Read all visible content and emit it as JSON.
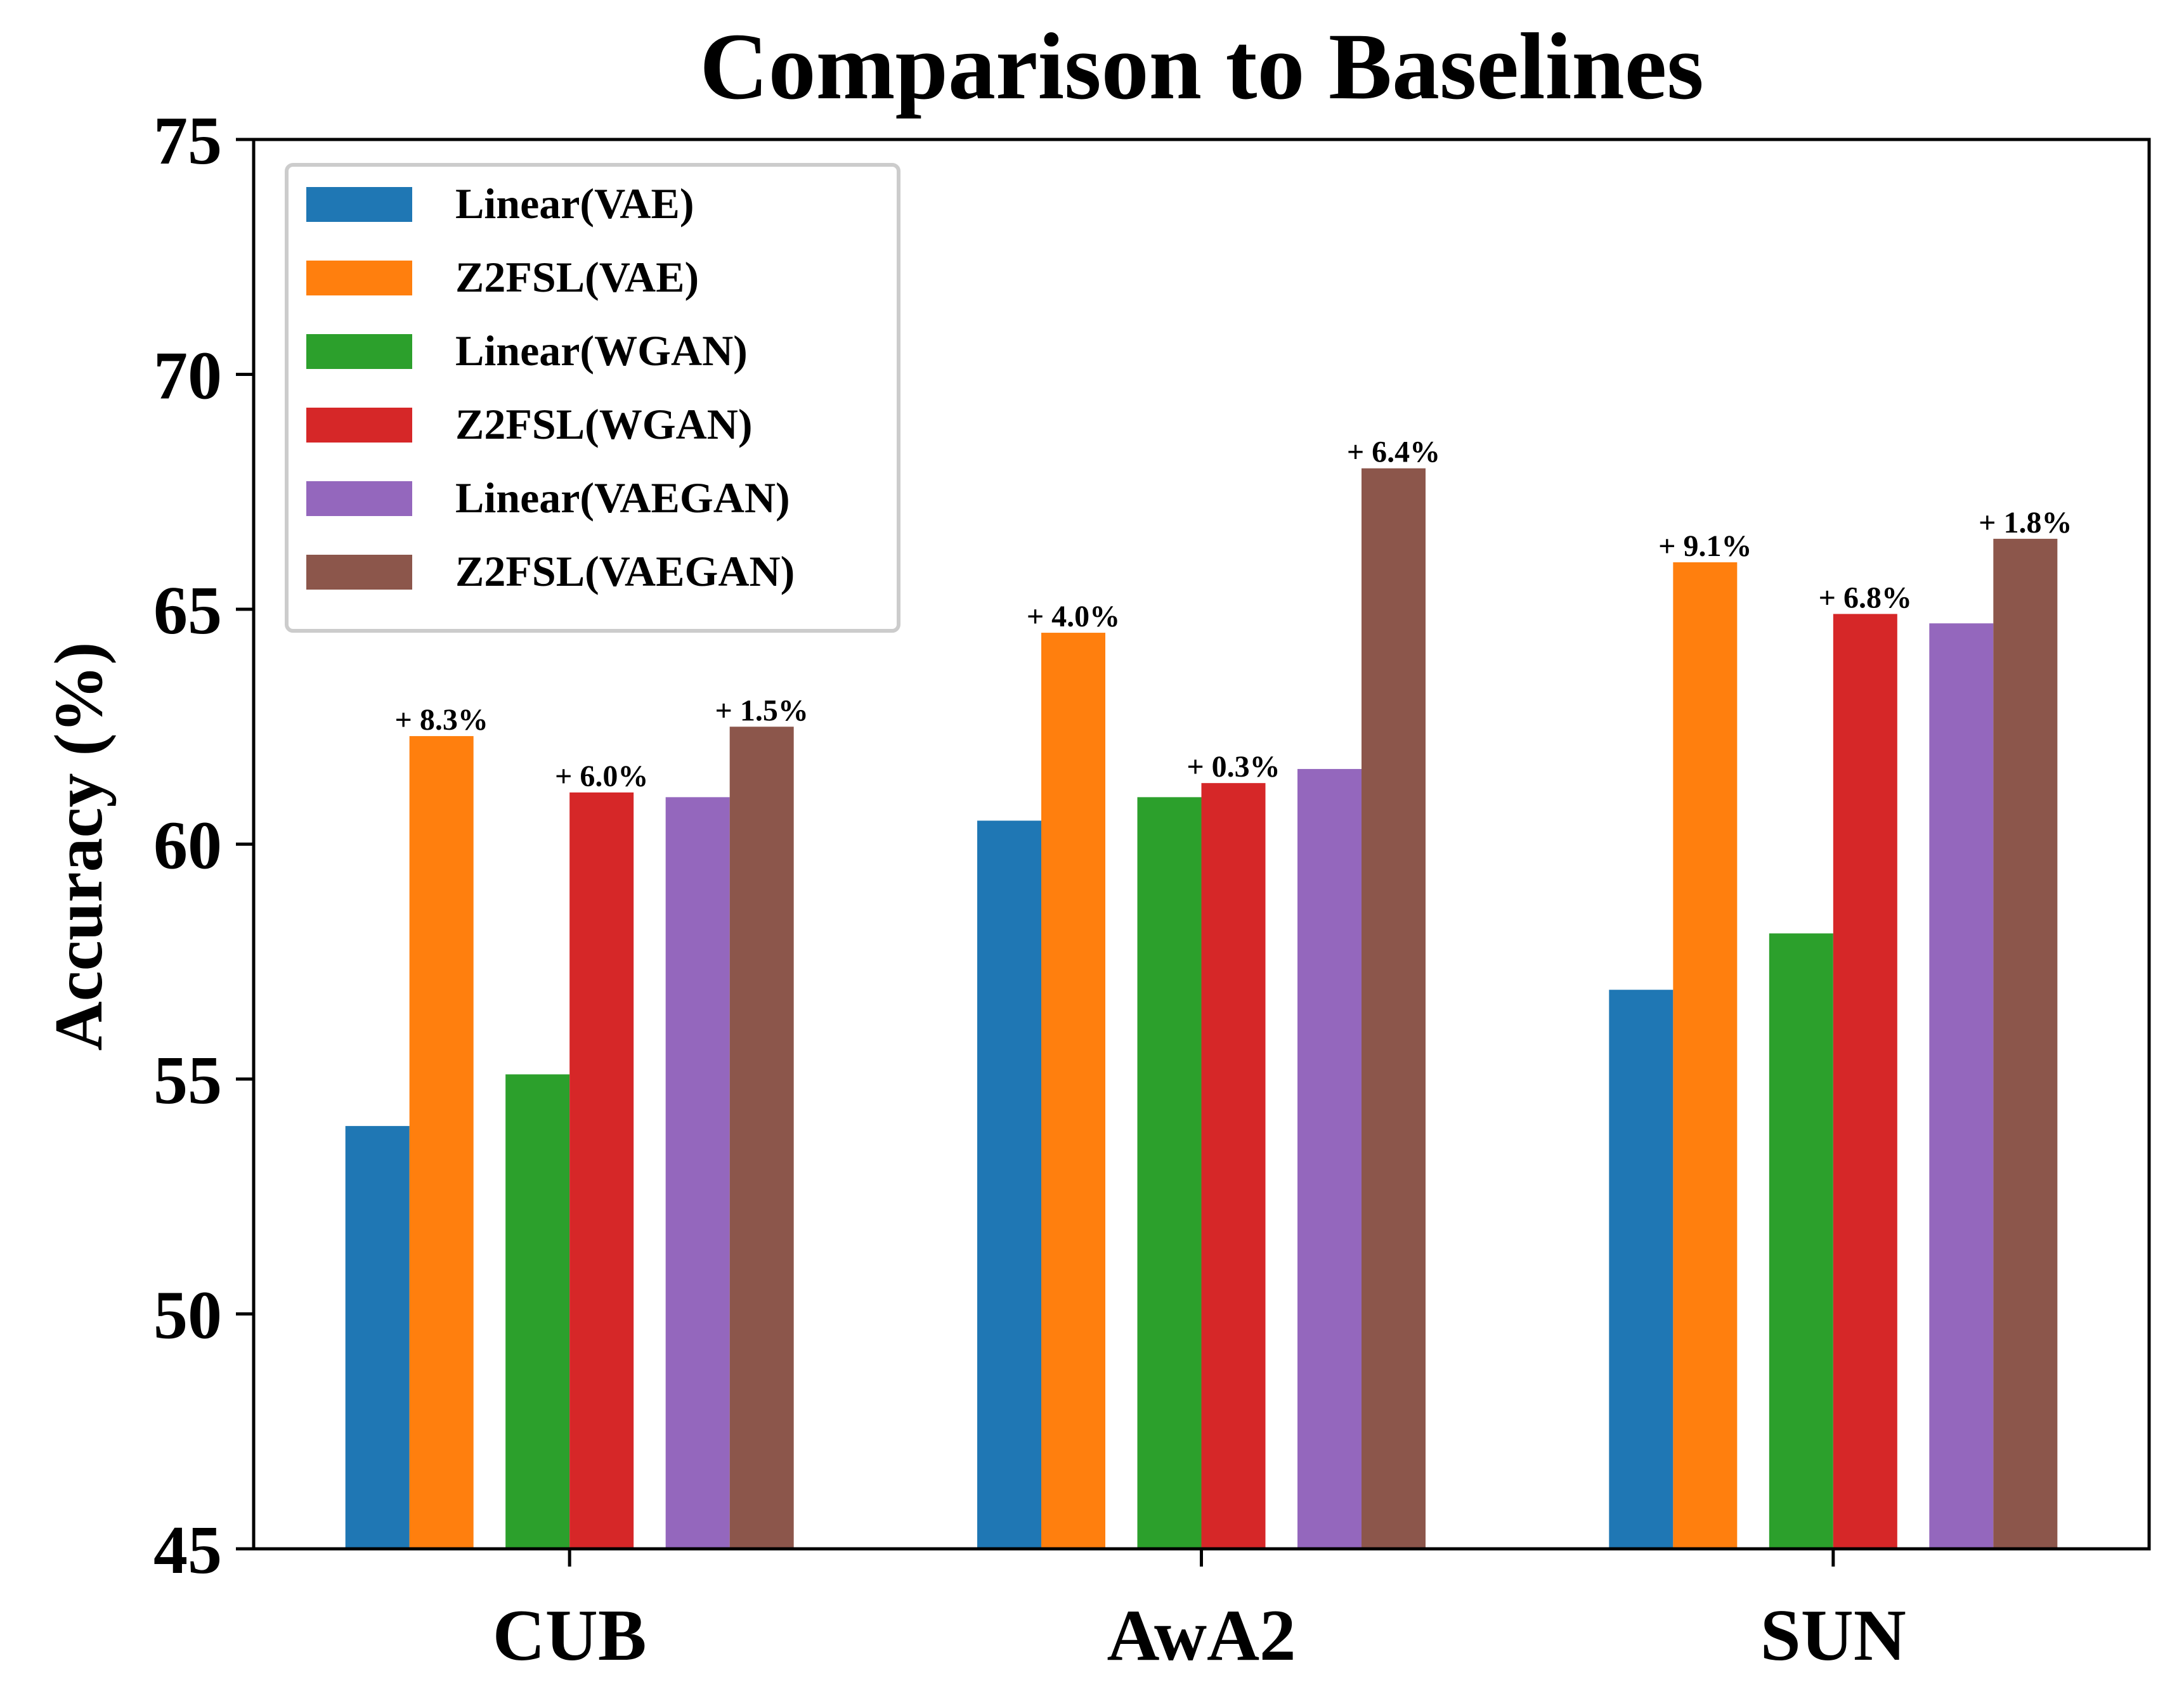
{
  "chart_data": {
    "type": "bar",
    "title": "Comparison to Baselines",
    "xlabel": "",
    "ylabel": "Accuracy (%)",
    "ylim": [
      45,
      75
    ],
    "yticks": [
      "45",
      "50",
      "55",
      "60",
      "65",
      "70",
      "75"
    ],
    "grid": false,
    "legend_position": "top-left",
    "categories": [
      "CUB",
      "AwA2",
      "SUN"
    ],
    "series": [
      {
        "name": "Linear(VAE)",
        "color": "#1f77b4",
        "values": [
          54.0,
          60.5,
          56.9
        ],
        "labels": [
          "",
          "",
          ""
        ]
      },
      {
        "name": "Z2FSL(VAE)",
        "color": "#ff7f0e",
        "values": [
          62.3,
          64.5,
          66.0
        ],
        "labels": [
          "+ 8.3%",
          "+ 4.0%",
          "+ 9.1%"
        ]
      },
      {
        "name": "Linear(WGAN)",
        "color": "#2ca02c",
        "values": [
          55.1,
          61.0,
          58.1
        ],
        "labels": [
          "",
          "",
          ""
        ]
      },
      {
        "name": "Z2FSL(WGAN)",
        "color": "#d62728",
        "values": [
          61.1,
          61.3,
          64.9
        ],
        "labels": [
          "+ 6.0%",
          "+ 0.3%",
          "+ 6.8%"
        ]
      },
      {
        "name": "Linear(VAEGAN)",
        "color": "#9467bd",
        "values": [
          61.0,
          61.6,
          64.7
        ],
        "labels": [
          "",
          "",
          ""
        ]
      },
      {
        "name": "Z2FSL(VAEGAN)",
        "color": "#8c564b",
        "values": [
          62.5,
          68.0,
          66.5
        ],
        "labels": [
          "+ 1.5%",
          "+ 6.4%",
          "+ 1.8%"
        ]
      }
    ]
  }
}
